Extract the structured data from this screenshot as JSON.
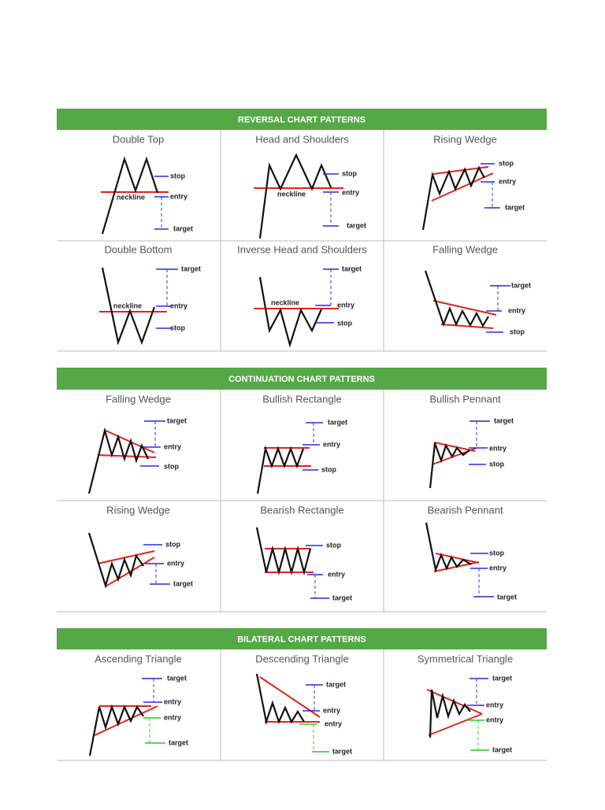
{
  "sections": [
    {
      "title": "REVERSAL CHART PATTERNS",
      "patterns": [
        {
          "name": "Double Top",
          "labels": [
            "stop",
            "entry",
            "neckline",
            "target"
          ]
        },
        {
          "name": "Head and Shoulders",
          "labels": [
            "stop",
            "entry",
            "neckline",
            "target"
          ]
        },
        {
          "name": "Rising Wedge",
          "labels": [
            "stop",
            "entry",
            "target"
          ]
        },
        {
          "name": "Double Bottom",
          "labels": [
            "target",
            "entry",
            "neckline",
            "stop"
          ]
        },
        {
          "name": "Inverse Head and Shoulders",
          "labels": [
            "target",
            "entry",
            "neckline",
            "stop"
          ]
        },
        {
          "name": "Falling Wedge",
          "labels": [
            "target",
            "entry",
            "stop"
          ]
        }
      ]
    },
    {
      "title": "CONTINUATION CHART PATTERNS",
      "patterns": [
        {
          "name": "Falling Wedge",
          "labels": [
            "target",
            "entry",
            "stop"
          ]
        },
        {
          "name": "Bullish Rectangle",
          "labels": [
            "target",
            "entry",
            "stop"
          ]
        },
        {
          "name": "Bullish Pennant",
          "labels": [
            "target",
            "entry",
            "stop"
          ]
        },
        {
          "name": "Rising Wedge",
          "labels": [
            "stop",
            "entry",
            "target"
          ]
        },
        {
          "name": "Bearish Rectangle",
          "labels": [
            "stop",
            "entry",
            "target"
          ]
        },
        {
          "name": "Bearish Pennant",
          "labels": [
            "stop",
            "entry",
            "target"
          ]
        }
      ]
    },
    {
      "title": "BILATERAL CHART PATTERNS",
      "patterns": [
        {
          "name": "Ascending Triangle",
          "labels": [
            "target",
            "entry",
            "entry",
            "target"
          ]
        },
        {
          "name": "Descending Triangle",
          "labels": [
            "target",
            "entry",
            "entry",
            "target"
          ]
        },
        {
          "name": "Symmetrical Triangle",
          "labels": [
            "target",
            "entry",
            "entry",
            "target"
          ]
        }
      ]
    }
  ]
}
